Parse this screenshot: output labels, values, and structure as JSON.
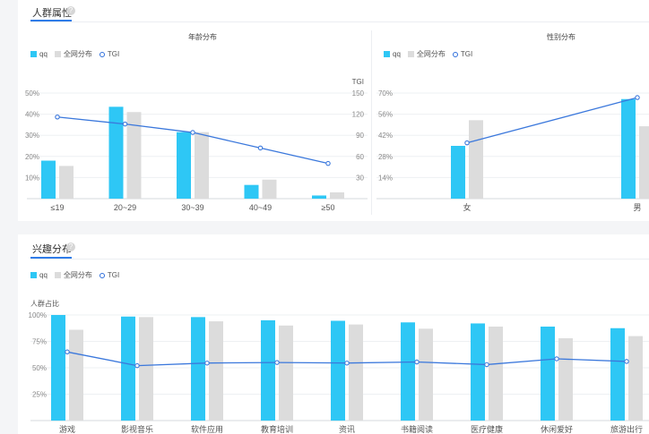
{
  "section1": {
    "title": "人群属性",
    "help": "?",
    "legend": {
      "a": "qq",
      "b": "全网分布",
      "c": "TGI"
    },
    "age_chart_title": "年龄分布",
    "gender_chart_title": "性别分布"
  },
  "section2": {
    "title": "兴趣分布",
    "help": "?",
    "legend": {
      "a": "qq",
      "b": "全网分布",
      "c": "TGI"
    }
  },
  "colors": {
    "qq": "#2ec7f5",
    "all": "#dcdcdc",
    "tgi": "#3b78dc",
    "accent": "#2f7ce8"
  },
  "chart_data": [
    {
      "id": "age",
      "type": "bar",
      "title": "年龄分布",
      "categories": [
        "≤19",
        "20~29",
        "30~39",
        "40~49",
        "≥50"
      ],
      "series": [
        {
          "name": "qq",
          "values": [
            18,
            43.5,
            31.5,
            6.5,
            1.5
          ]
        },
        {
          "name": "全网分布",
          "values": [
            15.5,
            41,
            31.5,
            9,
            3
          ]
        },
        {
          "name": "TGI",
          "values": [
            116,
            106,
            94,
            72,
            50
          ],
          "axis": "right",
          "kind": "line"
        }
      ],
      "yticks": [
        "",
        "10%",
        "20%",
        "30%",
        "40%",
        "50%"
      ],
      "ylim": [
        0,
        50
      ],
      "y2label": "TGI",
      "y2ticks": [
        "",
        "30",
        "60",
        "90",
        "120",
        "150"
      ],
      "y2lim": [
        0,
        150
      ]
    },
    {
      "id": "gender",
      "type": "bar",
      "title": "性别分布",
      "categories": [
        "女",
        "男"
      ],
      "series": [
        {
          "name": "qq",
          "values": [
            35,
            66
          ]
        },
        {
          "name": "全网分布",
          "values": [
            52,
            48
          ]
        },
        {
          "name": "TGI",
          "values": [
            37,
            67
          ],
          "axis": "right",
          "kind": "line"
        }
      ],
      "yticks": [
        "",
        "14%",
        "28%",
        "42%",
        "56%",
        "70%"
      ],
      "ylim": [
        0,
        70
      ]
    },
    {
      "id": "interest",
      "type": "bar",
      "ylabel": "人群占比",
      "categories": [
        "游戏",
        "影视音乐",
        "软件应用",
        "教育培训",
        "资讯",
        "书籍阅读",
        "医疗健康",
        "休闲爱好",
        "旅游出行"
      ],
      "series": [
        {
          "name": "qq",
          "values": [
            100,
            98.5,
            98,
            95,
            94.5,
            93,
            92,
            89,
            87.5
          ]
        },
        {
          "name": "全网分布",
          "values": [
            86,
            98,
            94,
            90,
            91,
            87,
            89,
            78,
            80
          ]
        },
        {
          "name": "TGI",
          "values": [
            65,
            52,
            54.5,
            55,
            54.5,
            55.5,
            53,
            58.5,
            56
          ],
          "kind": "line"
        }
      ],
      "yticks": [
        "",
        "25%",
        "50%",
        "75%",
        "100%"
      ],
      "ylim": [
        0,
        100
      ]
    }
  ]
}
